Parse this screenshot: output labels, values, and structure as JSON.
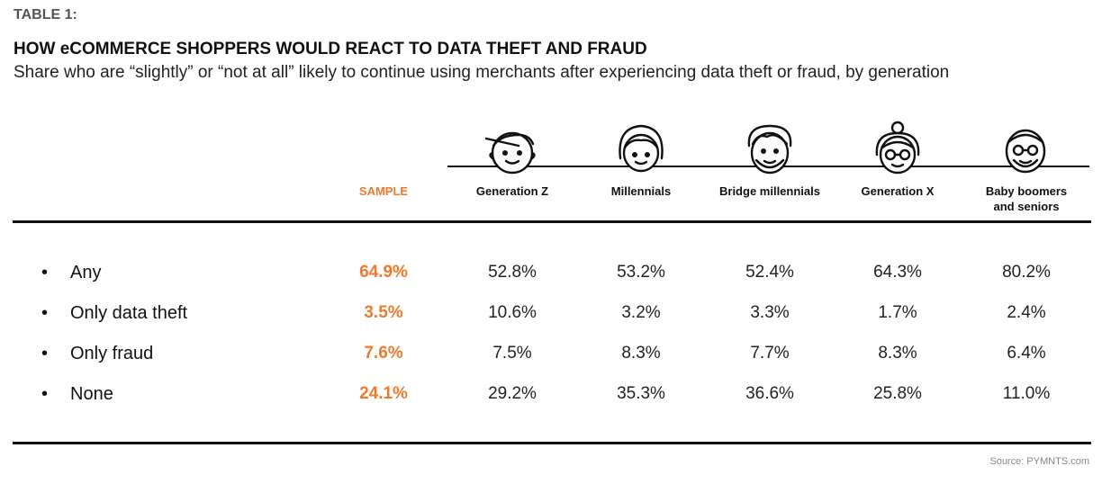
{
  "table_label": "TABLE 1:",
  "title": "HOW eCOMMERCE SHOPPERS WOULD REACT TO DATA THEFT AND FRAUD",
  "subtitle": "Share who are “slightly” or “not at all” likely to continue using merchants after experiencing data theft or fraud, by generation",
  "columns": [
    {
      "label": "SAMPLE",
      "icon": null
    },
    {
      "label": "Generation Z",
      "icon": "gen-z-face-icon"
    },
    {
      "label": "Millennials",
      "icon": "millennial-face-icon"
    },
    {
      "label": "Bridge millennials",
      "icon": "bridge-millennial-face-icon"
    },
    {
      "label": "Generation X",
      "icon": "gen-x-face-icon"
    },
    {
      "label": "Baby boomers and seniors",
      "icon": "boomer-face-icon"
    }
  ],
  "rows": [
    {
      "label": "Any",
      "values": [
        "64.9%",
        "52.8%",
        "53.2%",
        "52.4%",
        "64.3%",
        "80.2%"
      ]
    },
    {
      "label": "Only data theft",
      "values": [
        "3.5%",
        "10.6%",
        "3.2%",
        "3.3%",
        "1.7%",
        "2.4%"
      ]
    },
    {
      "label": "Only fraud",
      "values": [
        "7.6%",
        "7.5%",
        "8.3%",
        "7.7%",
        "8.3%",
        "6.4%"
      ]
    },
    {
      "label": "None",
      "values": [
        "24.1%",
        "29.2%",
        "35.3%",
        "36.6%",
        "25.8%",
        "11.0%"
      ]
    }
  ],
  "bullet": "•",
  "source": "Source: PYMNTS.com",
  "colors": {
    "accent": "#ef7a2e",
    "text": "#111111"
  }
}
